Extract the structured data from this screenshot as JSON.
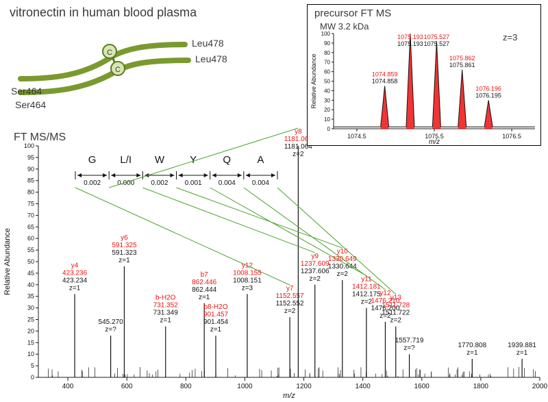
{
  "title": "vitronectin in human blood plasma",
  "residues": {
    "top_right": "Leu478",
    "mid_right": "Leu478",
    "bot_left": "Ser464",
    "bot_left2": "Ser464"
  },
  "msms_title": "FT MS/MS",
  "ladder": {
    "letters": [
      "G",
      "L/I",
      "W",
      "Y",
      "Q",
      "A"
    ],
    "errors": [
      "0.002",
      "0.000",
      "0.002",
      "0.001",
      "0.004",
      "0.004"
    ]
  },
  "msms": {
    "xmin": 300,
    "xmax": 2000,
    "xticks": [
      400,
      600,
      800,
      1000,
      1200,
      1400,
      1600,
      1800,
      2000
    ],
    "xlabel": "m/z",
    "ylabel": "Relative Abundance",
    "y_ticks": [
      0,
      5,
      10,
      15,
      20,
      25,
      30,
      35,
      40,
      45,
      50,
      55,
      60,
      65,
      70,
      75,
      80,
      85,
      90,
      95,
      100
    ],
    "peaks": [
      {
        "name": "y4",
        "mz": 423.236,
        "obs": 423.234,
        "z": "z=1",
        "h": 36
      },
      {
        "name": "",
        "mz": 545.27,
        "obs": "",
        "z": "z=?",
        "h": 18,
        "black_only": true
      },
      {
        "name": "y6",
        "mz": 591.325,
        "obs": 591.323,
        "z": "z=1",
        "h": 48
      },
      {
        "name": "b-H2O",
        "mz": 731.352,
        "obs": 731.349,
        "z": "z=1",
        "h": 22
      },
      {
        "name": "b7",
        "mz": 862.446,
        "obs": 862.444,
        "z": "z=1",
        "h": 32
      },
      {
        "name": "b8-H2O",
        "mz": 901.457,
        "obs": 901.454,
        "z": "z=1",
        "h": 18
      },
      {
        "name": "y12",
        "mz": 1008.155,
        "obs": 1008.151,
        "z": "z=3",
        "h": 36
      },
      {
        "name": "y7",
        "mz": 1152.557,
        "obs": 1152.552,
        "z": "z=2",
        "h": 26
      },
      {
        "name": "y8",
        "mz": 1181.067,
        "obs": 1181.064,
        "z": "z=2",
        "h": 100,
        "tall": true
      },
      {
        "name": "y9",
        "mz": 1237.609,
        "obs": 1237.606,
        "z": "z=2",
        "h": 40
      },
      {
        "name": "y10",
        "mz": 1330.649,
        "obs": 1330.644,
        "z": "z=2",
        "h": 42
      },
      {
        "name": "y11",
        "mz": 1412.181,
        "obs": 1412.175,
        "z": "z=2",
        "h": 30
      },
      {
        "name": "y12",
        "mz": 1476.21,
        "obs": 1476.2,
        "z": "z=2",
        "h": 24
      },
      {
        "name": "y13",
        "mz": 1511.728,
        "obs": 1511.722,
        "z": "z=2",
        "h": 22
      },
      {
        "name": "",
        "mz": 1557.719,
        "obs": "",
        "z": "z=?",
        "h": 10,
        "black_only": true
      },
      {
        "name": "",
        "mz": 1770.808,
        "obs": "",
        "z": "z=1",
        "h": 8,
        "black_only": true
      },
      {
        "name": "",
        "mz": 1939.881,
        "obs": "",
        "z": "z=1",
        "h": 8,
        "black_only": true
      }
    ],
    "noise_density": 90,
    "axis_color": "#1a1a1a"
  },
  "inset": {
    "title": "precursor FT MS",
    "sub": "MW 3.2 kDa",
    "z": "z=3",
    "xmin": 1074.2,
    "xmax": 1076.8,
    "xticks": [
      1074.5,
      1075.5,
      1076.5
    ],
    "xlabel": "m/z",
    "peaks": [
      {
        "red": "1074.859",
        "blk": "1074.858",
        "x": 1074.86,
        "h": 45
      },
      {
        "red": "1075.193",
        "blk": "1075.193",
        "x": 1075.19,
        "h": 100
      },
      {
        "red": "1075.527",
        "blk": "1075.527",
        "x": 1075.53,
        "h": 92
      },
      {
        "red": "1075.862",
        "blk": "1075.861",
        "x": 1075.86,
        "h": 62
      },
      {
        "red": "1076.196",
        "blk": "1076.195",
        "x": 1076.2,
        "h": 30
      }
    ],
    "red_color": "#e11",
    "black_color": "#111",
    "axis_color": "#1a1a1a"
  },
  "peptide_diagram": {
    "strand_color": "#7a9a2e",
    "circle_fill": "#d8e6b5",
    "circle_stroke": "#5a7a1e"
  }
}
